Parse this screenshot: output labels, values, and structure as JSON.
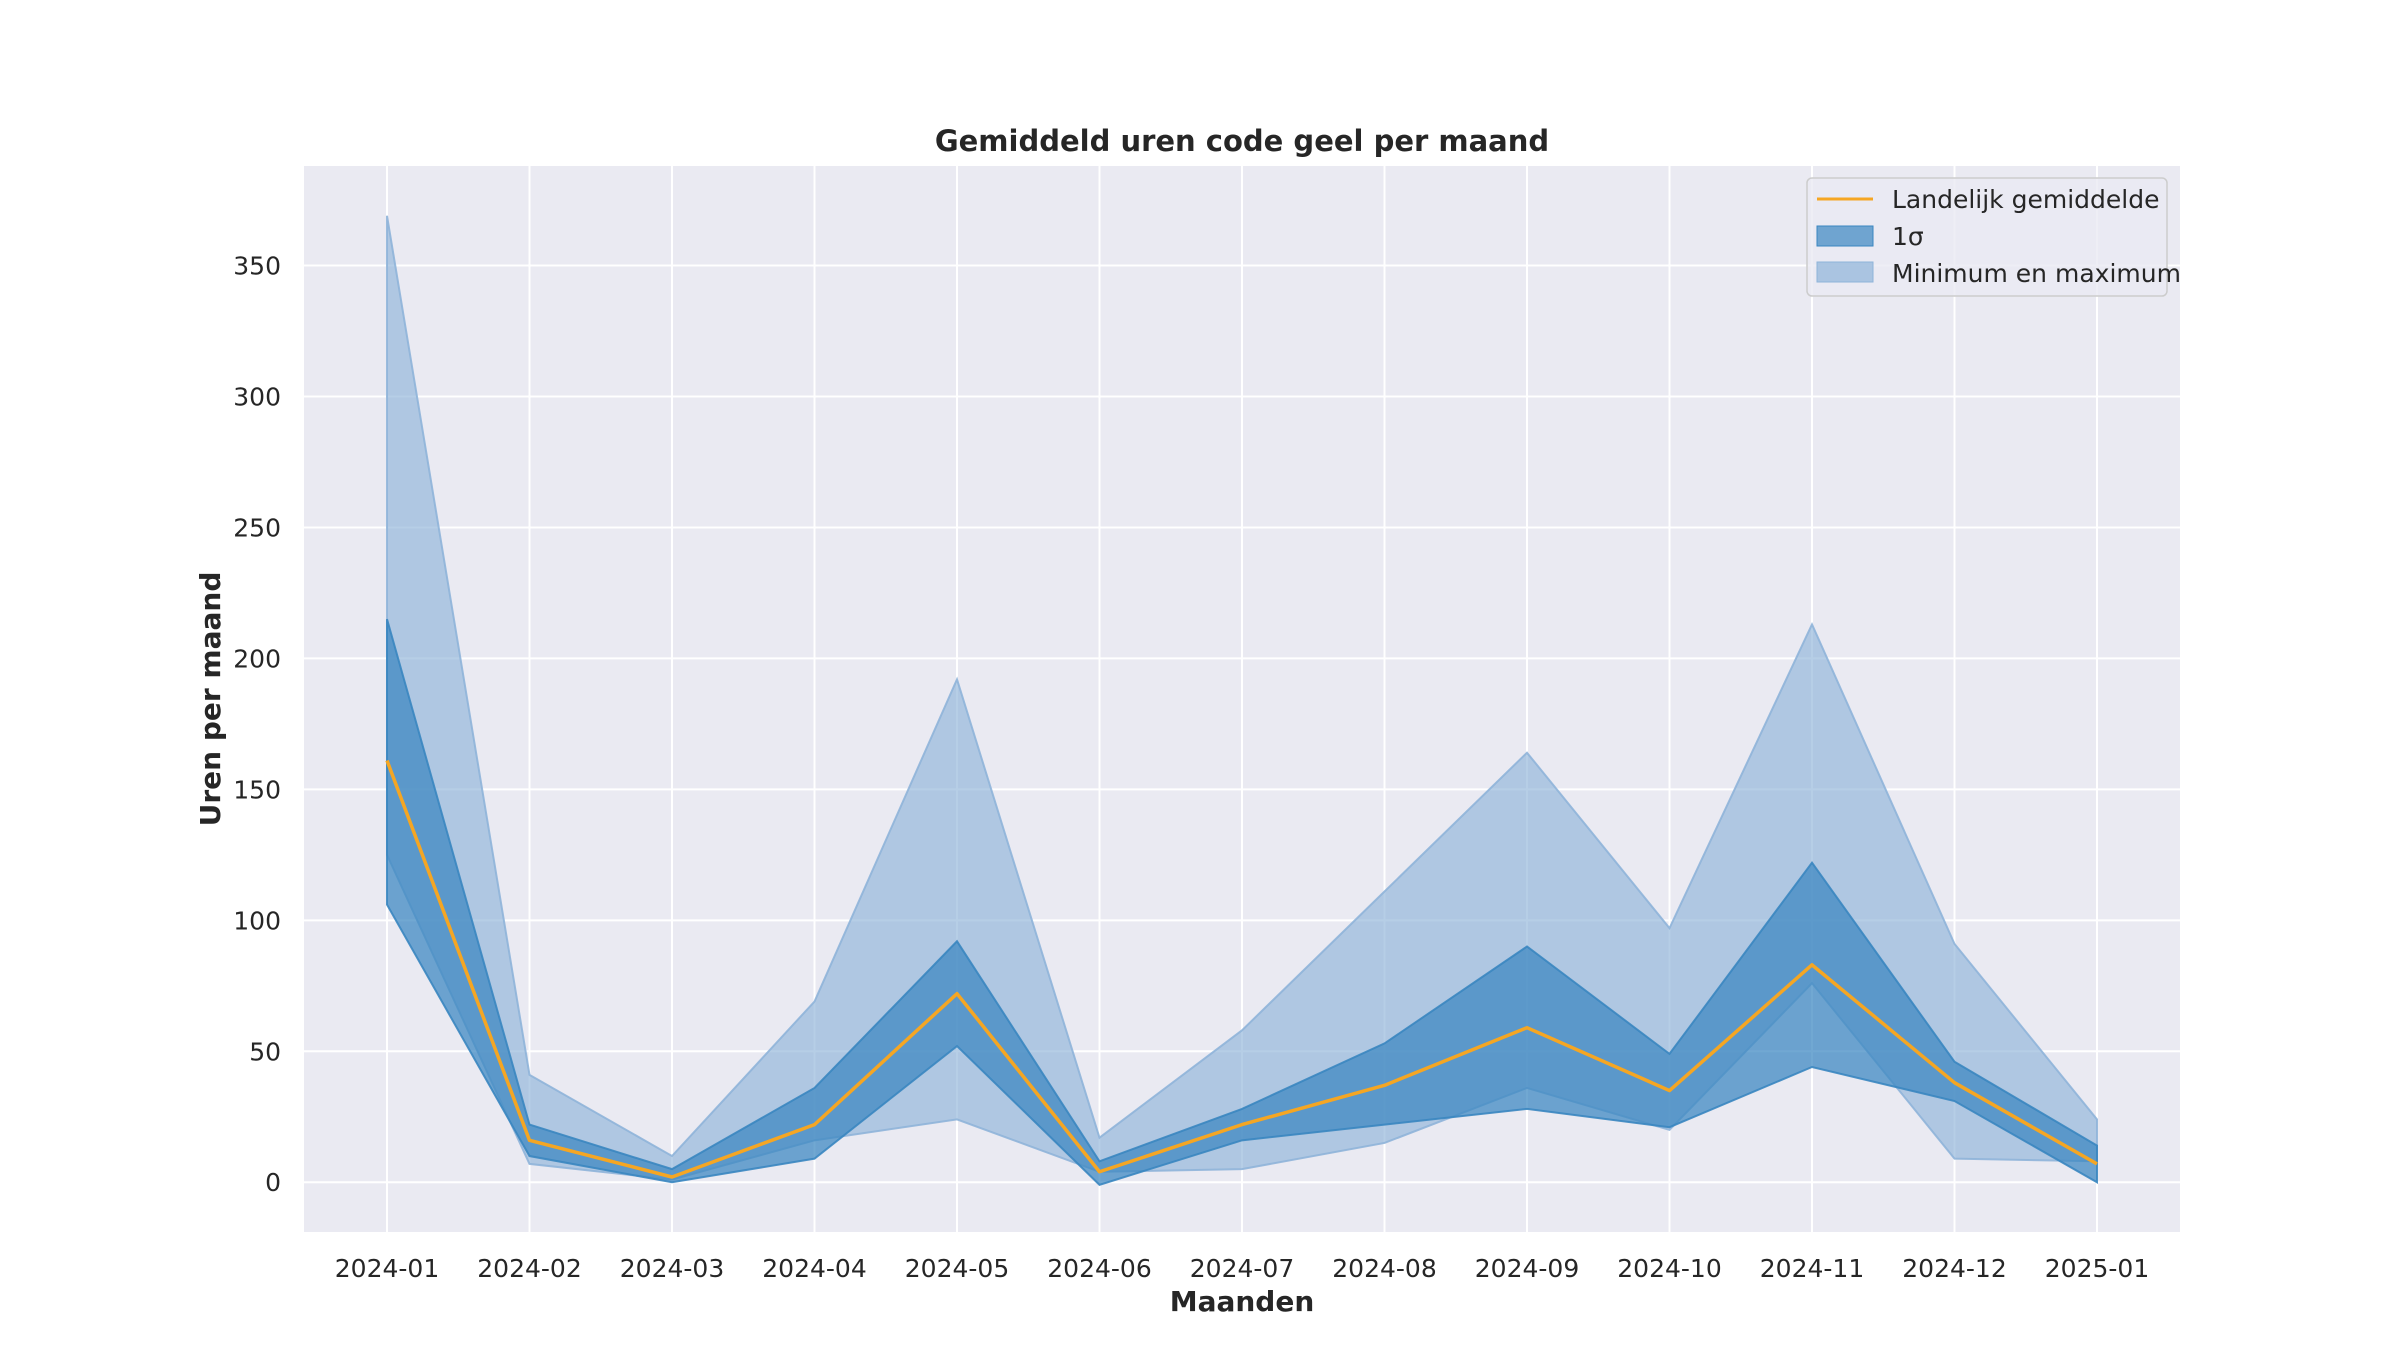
{
  "chart_data": {
    "type": "area",
    "title": "Gemiddeld uren code geel per maand",
    "xlabel": "Maanden",
    "ylabel": "Uren per maand",
    "categories": [
      "2024-01",
      "2024-02",
      "2024-03",
      "2024-04",
      "2024-05",
      "2024-06",
      "2024-07",
      "2024-08",
      "2024-09",
      "2024-10",
      "2024-11",
      "2024-12",
      "2025-01"
    ],
    "yticks": [
      0,
      50,
      100,
      150,
      200,
      250,
      300,
      350
    ],
    "ylim": [
      -19,
      388
    ],
    "grid": true,
    "legend_position": "top-right",
    "series": [
      {
        "name": "Landelijk gemiddelde",
        "kind": "line",
        "color": "#f5a623",
        "values": [
          161,
          16,
          2,
          22,
          72,
          4,
          22,
          37,
          59,
          35,
          83,
          38,
          7
        ]
      },
      {
        "name": "1σ",
        "kind": "band",
        "color": "#3a86c0",
        "lower": [
          106,
          10,
          0,
          9,
          52,
          -1,
          16,
          22,
          28,
          21,
          44,
          31,
          0
        ],
        "upper": [
          215,
          22,
          5,
          36,
          92,
          8,
          28,
          53,
          90,
          49,
          122,
          46,
          14
        ]
      },
      {
        "name": "Minimum en maximum",
        "kind": "band",
        "color": "#8fb4d9",
        "lower": [
          125,
          7,
          1,
          16,
          24,
          4,
          5,
          15,
          36,
          20,
          76,
          9,
          8
        ],
        "upper": [
          369,
          41,
          10,
          69,
          192,
          17,
          58,
          111,
          164,
          97,
          213,
          91,
          24
        ]
      }
    ]
  }
}
